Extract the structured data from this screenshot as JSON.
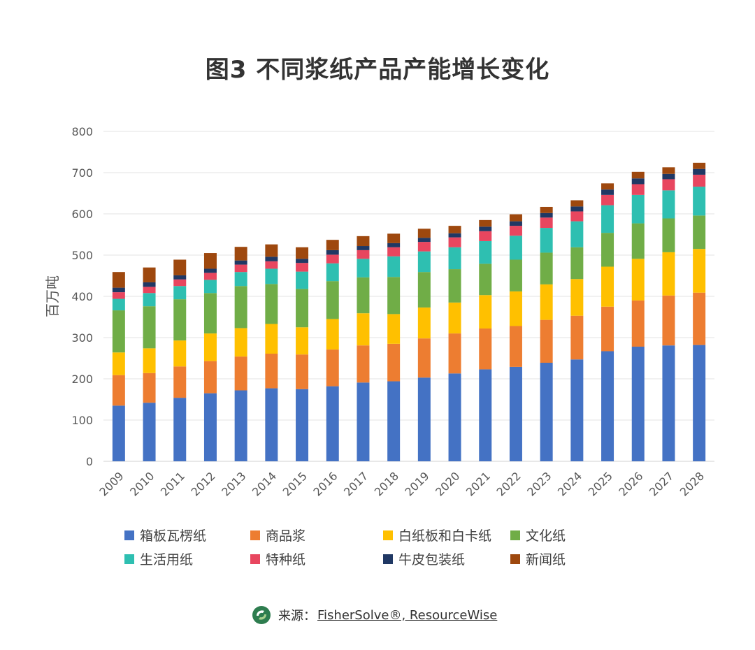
{
  "title": "图3  不同浆纸产品产能增长变化",
  "chart_data": {
    "type": "bar",
    "stacked": true,
    "ylabel": "百万吨",
    "ylim": [
      0,
      800
    ],
    "yticks": [
      "0",
      "100",
      "200",
      "300",
      "400",
      "500",
      "600",
      "700",
      "800"
    ],
    "categories": [
      "2009",
      "2010",
      "2011",
      "2012",
      "2013",
      "2014",
      "2015",
      "2016",
      "2017",
      "2018",
      "2019",
      "2020",
      "2021",
      "2022",
      "2023",
      "2024",
      "2025",
      "2026",
      "2027",
      "2028"
    ],
    "series": [
      {
        "name": "箱板瓦楞纸",
        "color": "#4472C4",
        "values": [
          135,
          142,
          154,
          165,
          172,
          177,
          175,
          182,
          191,
          194,
          203,
          213,
          223,
          229,
          239,
          247,
          267,
          278,
          281,
          282
        ]
      },
      {
        "name": "商品浆",
        "color": "#ED7D31",
        "values": [
          74,
          72,
          76,
          78,
          82,
          84,
          84,
          89,
          90,
          91,
          95,
          97,
          99,
          99,
          104,
          106,
          108,
          112,
          121,
          127
        ]
      },
      {
        "name": "白纸板和白卡纸",
        "color": "#FFC000",
        "values": [
          55,
          60,
          63,
          67,
          69,
          72,
          66,
          74,
          78,
          72,
          75,
          75,
          81,
          84,
          86,
          89,
          97,
          101,
          105,
          106
        ]
      },
      {
        "name": "文化纸",
        "color": "#70AD47",
        "values": [
          102,
          102,
          100,
          98,
          102,
          97,
          93,
          92,
          87,
          90,
          86,
          81,
          76,
          77,
          77,
          77,
          82,
          86,
          82,
          81
        ]
      },
      {
        "name": "生活用纸",
        "color": "#2EBFB1",
        "values": [
          28,
          32,
          32,
          32,
          34,
          37,
          42,
          43,
          45,
          50,
          50,
          53,
          55,
          58,
          60,
          63,
          67,
          69,
          68,
          70
        ]
      },
      {
        "name": "特种纸",
        "color": "#E8465F",
        "values": [
          16,
          15,
          16,
          17,
          18,
          18,
          21,
          21,
          21,
          22,
          23,
          24,
          24,
          24,
          25,
          24,
          25,
          26,
          27,
          29
        ]
      },
      {
        "name": "牛皮包装纸",
        "color": "#203864",
        "values": [
          11,
          11,
          10,
          10,
          10,
          11,
          10,
          11,
          10,
          10,
          10,
          10,
          11,
          11,
          11,
          12,
          13,
          14,
          13,
          14
        ]
      },
      {
        "name": "新闻纸",
        "color": "#9E480E",
        "values": [
          38,
          36,
          38,
          38,
          33,
          30,
          28,
          25,
          24,
          23,
          22,
          18,
          16,
          17,
          15,
          15,
          15,
          16,
          16,
          15
        ]
      }
    ]
  },
  "legend": [
    {
      "label": "箱板瓦楞纸",
      "color": "#4472C4"
    },
    {
      "label": "商品浆",
      "color": "#ED7D31"
    },
    {
      "label": "白纸板和白卡纸",
      "color": "#FFC000"
    },
    {
      "label": "文化纸",
      "color": "#70AD47"
    },
    {
      "label": "生活用纸",
      "color": "#2EBFB1"
    },
    {
      "label": "特种纸",
      "color": "#E8465F"
    },
    {
      "label": "牛皮包装纸",
      "color": "#203864"
    },
    {
      "label": "新闻纸",
      "color": "#9E480E"
    }
  ],
  "source": {
    "prefix": "来源：",
    "name": "FisherSolve®, ResourceWise"
  }
}
